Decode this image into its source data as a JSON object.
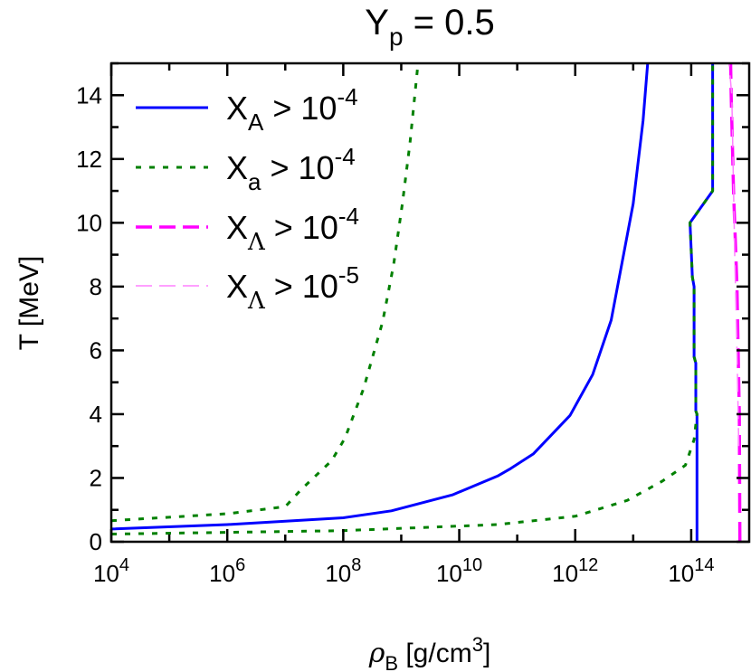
{
  "chart_data": {
    "type": "line",
    "title": {
      "base": "Y",
      "sub": "p",
      "rest": " = 0.5"
    },
    "xlabel": {
      "base": "ρ",
      "sub": "B",
      "rest": " [g/cm",
      "sup": "3",
      "end": "]"
    },
    "ylabel": "T [MeV]",
    "x_scale": "log",
    "xlim": [
      10000.0,
      1000000000000000.0
    ],
    "ylim": [
      0,
      15
    ],
    "x_ticks": [
      {
        "base": "10",
        "exp": "4",
        "value": 4
      },
      {
        "base": "10",
        "exp": "6",
        "value": 6
      },
      {
        "base": "10",
        "exp": "8",
        "value": 8
      },
      {
        "base": "10",
        "exp": "10",
        "value": 10
      },
      {
        "base": "10",
        "exp": "12",
        "value": 12
      },
      {
        "base": "10",
        "exp": "14",
        "value": 14
      }
    ],
    "y_ticks": [
      "0",
      "2",
      "4",
      "6",
      "8",
      "10",
      "12",
      "14"
    ],
    "grid": false,
    "legend_position": "top-left",
    "series": [
      {
        "name": {
          "base": "X",
          "sub": "A",
          "rest": " > 10",
          "sup": "-4"
        },
        "color": "#0000ff",
        "style": "solid",
        "segments": [
          [
            [
              4,
              0.4
            ],
            [
              6,
              0.54
            ],
            [
              8,
              0.75
            ],
            [
              8.83,
              0.97
            ],
            [
              9.88,
              1.47
            ],
            [
              10.66,
              2.06
            ],
            [
              10.89,
              2.3
            ],
            [
              11.28,
              2.76
            ],
            [
              11.91,
              3.96
            ],
            [
              12.3,
              5.24
            ],
            [
              12.62,
              6.95
            ],
            [
              13.0,
              10.6
            ],
            [
              13.17,
              13.2
            ],
            [
              13.25,
              15
            ]
          ],
          [
            [
              14.1,
              0
            ],
            [
              14.1,
              4.0
            ],
            [
              14.08,
              4.1
            ],
            [
              14.08,
              5.6
            ],
            [
              14.05,
              5.8
            ],
            [
              14.05,
              8.0
            ],
            [
              14.02,
              8.3
            ],
            [
              13.98,
              10
            ],
            [
              14.37,
              11
            ],
            [
              14.37,
              15
            ]
          ]
        ]
      },
      {
        "name": {
          "base": "X",
          "sub": "a",
          "rest": " > 10",
          "sup": "-4"
        },
        "color": "#008000",
        "style": "dotted",
        "segments": [
          [
            [
              4,
              0.66
            ],
            [
              6,
              0.88
            ],
            [
              7,
              1.1
            ],
            [
              7.27,
              1.63
            ],
            [
              7.8,
              2.54
            ],
            [
              8.03,
              3.25
            ],
            [
              8.35,
              4.8
            ],
            [
              8.68,
              6.9
            ],
            [
              8.87,
              8.7
            ],
            [
              9.02,
              10.6
            ],
            [
              9.15,
              12.5
            ],
            [
              9.29,
              15
            ]
          ],
          [
            [
              4,
              0.24
            ],
            [
              8,
              0.35
            ],
            [
              10.66,
              0.54
            ],
            [
              12,
              0.8
            ],
            [
              12.9,
              1.3
            ],
            [
              13.5,
              1.9
            ],
            [
              13.9,
              2.4
            ],
            [
              14.05,
              3.2
            ],
            [
              14.1,
              4.0
            ],
            [
              14.08,
              4.1
            ],
            [
              14.08,
              5.6
            ],
            [
              14.05,
              5.8
            ],
            [
              14.05,
              8.0
            ],
            [
              14.02,
              8.3
            ],
            [
              13.98,
              10
            ],
            [
              14.37,
              11
            ],
            [
              14.37,
              15
            ]
          ]
        ]
      },
      {
        "name": {
          "base": "X",
          "sub": "Λ",
          "rest": " > 10",
          "sup": "-4"
        },
        "color": "#ff00ff",
        "style": "dashed",
        "segments": [
          [
            [
              14.84,
              0
            ],
            [
              14.83,
              4
            ],
            [
              14.79,
              8
            ],
            [
              14.73,
              11
            ],
            [
              14.69,
              14
            ],
            [
              14.68,
              15
            ]
          ]
        ]
      },
      {
        "name": {
          "base": "X",
          "sub": "Λ",
          "rest": " > 10",
          "sup": "-5"
        },
        "color": "#ff80ff",
        "style": "thin-dashed",
        "segments": [
          [
            [
              14.82,
              3
            ],
            [
              14.79,
              6
            ],
            [
              14.75,
              9
            ],
            [
              14.72,
              12
            ],
            [
              14.7,
              14
            ],
            [
              14.65,
              15
            ]
          ]
        ]
      }
    ]
  }
}
